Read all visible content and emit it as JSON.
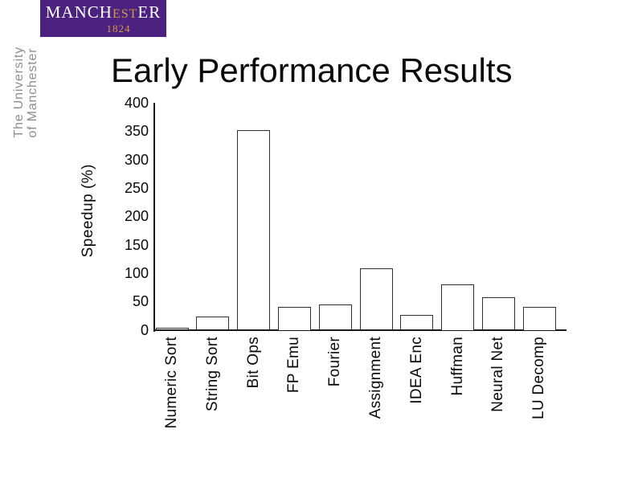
{
  "slide": {
    "title": "Early Performance Results"
  },
  "logo": {
    "text_main_1": "MANCH",
    "text_accent": "EST",
    "text_main_2": "ER",
    "year": "1824",
    "background_color": "#4b2280",
    "text_color": "#ffffff",
    "accent_color": "#d69a3c"
  },
  "side_text": {
    "line1": "The University",
    "line2": "of Manchester",
    "color": "#8e8e8e"
  },
  "chart_data": {
    "type": "bar",
    "title": "",
    "xlabel": "",
    "ylabel": "Speedup (%)",
    "categories": [
      "Numeric Sort",
      "String Sort",
      "Bit Ops",
      "FP Emu",
      "Fourier",
      "Assignment",
      "IDEA Enc",
      "Huffman",
      "Neural Net",
      "LU Decomp"
    ],
    "values": [
      4,
      24,
      352,
      40,
      44,
      108,
      26,
      80,
      58,
      40
    ],
    "ylim": [
      0,
      400
    ],
    "yticks": [
      0,
      50,
      100,
      150,
      200,
      250,
      300,
      350,
      400
    ],
    "grid": false,
    "legend": false,
    "bar_fill": "#ffffff",
    "bar_border": "#2f2f2f",
    "axis_color": "#1a1a1a"
  }
}
